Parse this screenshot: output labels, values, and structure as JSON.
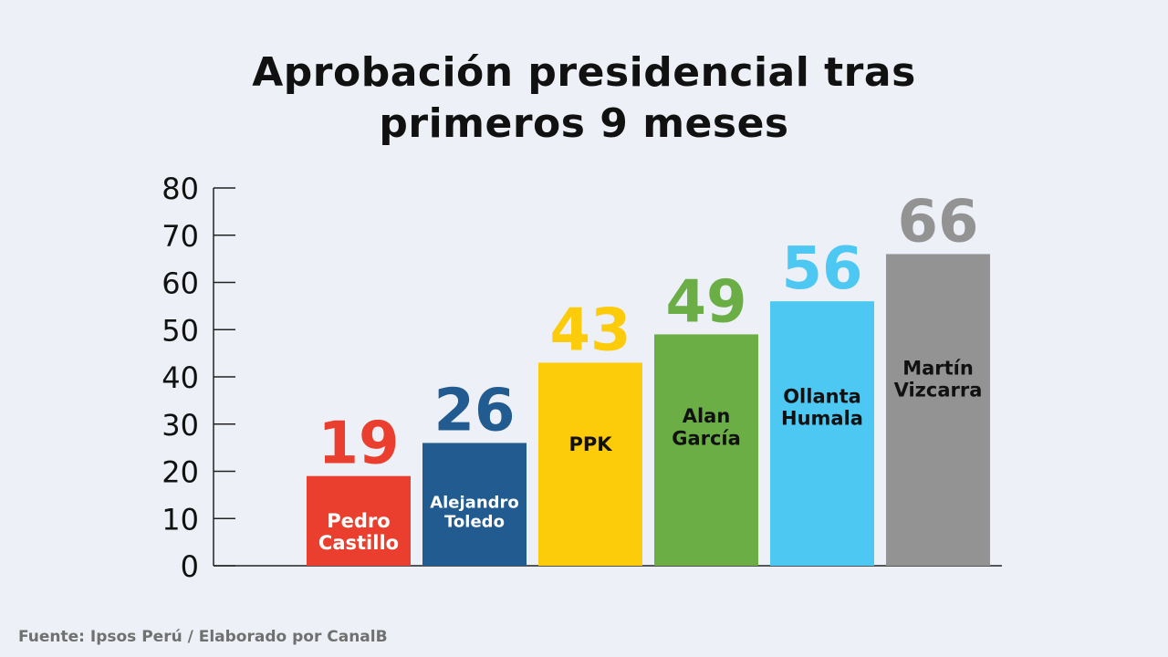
{
  "title_lines": [
    "Aprobación presidencial tras",
    "primeros 9 meses"
  ],
  "source": "Fuente: Ipsos Perú / Elaborado por CanalB",
  "chart_data": {
    "type": "bar",
    "title": "Aprobación presidencial tras primeros 9 meses",
    "xlabel": "",
    "ylabel": "",
    "ylim": [
      0,
      80
    ],
    "yticks": [
      0,
      10,
      20,
      30,
      40,
      50,
      60,
      70,
      80
    ],
    "grid": false,
    "legend": "none",
    "categories": [
      "Pedro Castillo",
      "Alejandro Toledo",
      "PPK",
      "Alan García",
      "Ollanta Humala",
      "Martín Vizcarra"
    ],
    "label_lines": [
      [
        "Pedro",
        "Castillo"
      ],
      [
        "Alejandro",
        "Toledo"
      ],
      [
        "PPK"
      ],
      [
        "Alan",
        "García"
      ],
      [
        "Ollanta",
        "Humala"
      ],
      [
        "Martín",
        "Vizcarra"
      ]
    ],
    "values": [
      19,
      26,
      43,
      49,
      56,
      66
    ],
    "colors": [
      "#ea3f2e",
      "#215b8f",
      "#fccb0a",
      "#6aae45",
      "#4dc8f3",
      "#939393"
    ],
    "label_colors": [
      "#ffffff",
      "#ffffff",
      "#111111",
      "#111111",
      "#111111",
      "#111111"
    ]
  }
}
